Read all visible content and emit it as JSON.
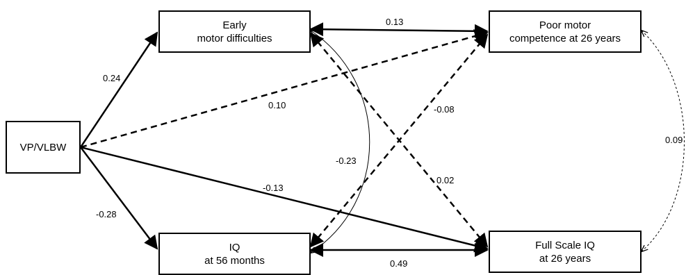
{
  "nodes": {
    "vp": {
      "lines": [
        "VP/VLBW"
      ]
    },
    "early": {
      "lines": [
        "Early",
        "motor difficulties"
      ]
    },
    "iq56": {
      "lines": [
        "IQ",
        "at 56 months"
      ]
    },
    "poor": {
      "lines": [
        "Poor motor",
        "competence at 26 years"
      ]
    },
    "fsiq": {
      "lines": [
        "Full Scale IQ",
        "at 26 years"
      ]
    }
  },
  "paths": {
    "vp_early": "0.24",
    "vp_iq56": "-0.28",
    "vp_poor": "0.10",
    "vp_fsiq": "-0.13",
    "early_poor": "0.13",
    "early_fsiq": "0.02",
    "iq56_poor": "-0.08",
    "iq56_fsiq": "0.49",
    "early_iq56_cov": "-0.23",
    "poor_fsiq_cov": "0.09"
  }
}
